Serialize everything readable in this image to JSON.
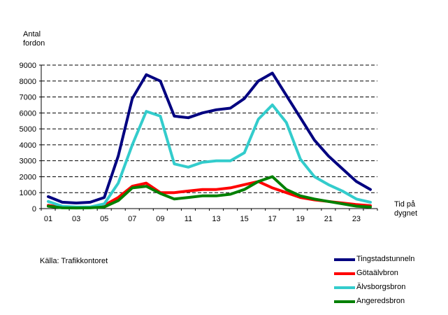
{
  "chart_data": {
    "type": "line",
    "ylabel": "Antal\nfordon",
    "xlabel": "Tid på\ndygnet",
    "ylim": [
      0,
      9000
    ],
    "yticks": [
      0,
      1000,
      2000,
      3000,
      4000,
      5000,
      6000,
      7000,
      8000,
      9000
    ],
    "x": [
      1,
      2,
      3,
      4,
      5,
      6,
      7,
      8,
      9,
      10,
      11,
      12,
      13,
      14,
      15,
      16,
      17,
      18,
      19,
      20,
      21,
      22,
      23,
      24
    ],
    "xtick_labels": [
      "01",
      "03",
      "05",
      "07",
      "09",
      "11",
      "13",
      "15",
      "17",
      "19",
      "21",
      "23"
    ],
    "xtick_positions": [
      1,
      3,
      5,
      7,
      9,
      11,
      13,
      15,
      17,
      19,
      21,
      23
    ],
    "grid": "horizontal dashed",
    "legend_position": "bottom-right",
    "series": [
      {
        "name": "Tingstadstunneln",
        "color": "#000080",
        "values": [
          750,
          400,
          350,
          400,
          700,
          3300,
          6900,
          8400,
          8000,
          5800,
          5700,
          6000,
          6200,
          6300,
          6900,
          8000,
          8500,
          7100,
          5700,
          4300,
          3300,
          2500,
          1700,
          1200
        ]
      },
      {
        "name": "Götaälvbron",
        "color": "#ff0000",
        "values": [
          200,
          80,
          60,
          70,
          200,
          700,
          1400,
          1600,
          1000,
          1000,
          1100,
          1200,
          1200,
          1300,
          1500,
          1700,
          1300,
          1000,
          700,
          550,
          450,
          350,
          250,
          180
        ]
      },
      {
        "name": "Älvsborgsbron",
        "color": "#33cccc",
        "values": [
          450,
          150,
          100,
          100,
          300,
          1600,
          4000,
          6100,
          5800,
          2800,
          2600,
          2900,
          3000,
          3000,
          3500,
          5600,
          6500,
          5400,
          3100,
          2000,
          1500,
          1100,
          600,
          400
        ]
      },
      {
        "name": "Angeredsbron",
        "color": "#008000",
        "values": [
          150,
          50,
          40,
          50,
          100,
          500,
          1300,
          1400,
          950,
          600,
          700,
          800,
          800,
          900,
          1200,
          1700,
          2000,
          1200,
          800,
          600,
          450,
          300,
          150,
          100
        ]
      }
    ]
  },
  "source": "Källa:  Trafikkontoret"
}
